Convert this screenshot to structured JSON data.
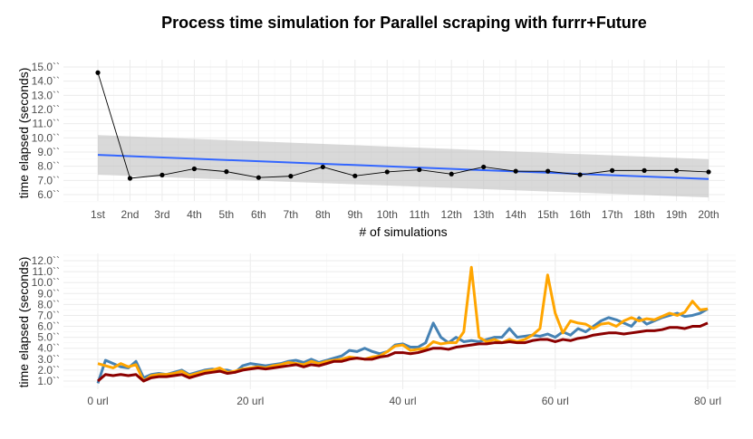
{
  "title": "Process time simulation for Parallel scraping with furrr+Future",
  "chart_data": [
    {
      "type": "line",
      "xlabel": "# of simulations",
      "ylabel": "time elapsed (seconds)",
      "categories": [
        "1st",
        "2nd",
        "3rd",
        "4th",
        "5th",
        "6th",
        "7th",
        "8th",
        "9th",
        "10th",
        "11th",
        "12th",
        "13th",
        "14th",
        "15th",
        "16th",
        "17th",
        "18th",
        "19th",
        "20th"
      ],
      "values": [
        14.6,
        7.15,
        7.38,
        7.82,
        7.62,
        7.2,
        7.3,
        7.95,
        7.32,
        7.6,
        7.75,
        7.45,
        7.95,
        7.65,
        7.65,
        7.4,
        7.7,
        7.7,
        7.7,
        7.6
      ],
      "yticks": [
        "6.0``",
        "7.0``",
        "8.0``",
        "9.0``",
        "10.0``",
        "11.0``",
        "12.0``",
        "13.0``",
        "14.0``",
        "15.0``"
      ],
      "ylim": [
        5.5,
        15.2
      ],
      "trend": {
        "start": 8.8,
        "end": 7.1,
        "band_start": [
          7.4,
          10.2
        ],
        "band_end": [
          5.8,
          8.5
        ]
      },
      "colors": {
        "points": "#000000",
        "trend": "#3366ff",
        "band": "#bfbfbf"
      },
      "grid": true
    },
    {
      "type": "line",
      "ylabel": "time elapsed (seconds)",
      "xticks": [
        "0 url",
        "20 url",
        "40 url",
        "60 url",
        "80 url"
      ],
      "xlim": [
        0,
        80
      ],
      "yticks": [
        "1.0``",
        "2.0``",
        "3.0``",
        "4.0``",
        "5.0``",
        "6.0``",
        "7.0``",
        "8.0``",
        "9.0``",
        "10.0``",
        "11.0``",
        "12.0``"
      ],
      "ylim": [
        0.3,
        12.6
      ],
      "grid": true,
      "series": [
        {
          "color": "#4682b4",
          "values": [
            0.8,
            2.9,
            2.6,
            2.3,
            2.2,
            2.8,
            1.3,
            1.6,
            1.7,
            1.6,
            1.8,
            2.0,
            1.6,
            1.8,
            2.0,
            2.1,
            2.0,
            2.0,
            1.8,
            2.4,
            2.6,
            2.5,
            2.4,
            2.5,
            2.6,
            2.8,
            2.9,
            2.7,
            3.0,
            2.7,
            2.9,
            3.1,
            3.3,
            3.8,
            3.7,
            4.0,
            3.7,
            3.5,
            3.7,
            4.3,
            4.4,
            4.1,
            4.1,
            4.5,
            6.3,
            5.0,
            4.5,
            5.0,
            4.6,
            4.7,
            4.6,
            4.8,
            5.0,
            5.0,
            5.8,
            5.0,
            5.1,
            5.2,
            5.1,
            5.3,
            5.0,
            5.5,
            5.2,
            5.8,
            5.5,
            6.0,
            6.5,
            6.8,
            6.6,
            6.3,
            6.0,
            6.8,
            6.2,
            6.5,
            6.8,
            7.0,
            7.2,
            6.9,
            7.0,
            7.2,
            7.6
          ]
        },
        {
          "color": "#ffa500",
          "values": [
            2.6,
            2.4,
            2.2,
            2.6,
            2.3,
            2.5,
            1.0,
            1.5,
            1.6,
            1.6,
            1.7,
            1.9,
            1.5,
            1.7,
            1.9,
            2.0,
            2.2,
            1.8,
            1.9,
            2.1,
            2.2,
            2.3,
            2.2,
            2.4,
            2.5,
            2.7,
            2.6,
            2.5,
            2.8,
            2.6,
            2.8,
            2.9,
            3.0,
            3.2,
            3.1,
            3.0,
            3.2,
            3.3,
            3.7,
            4.2,
            4.3,
            3.8,
            3.9,
            4.0,
            4.6,
            4.4,
            4.5,
            4.5,
            5.5,
            11.4,
            5.0,
            4.6,
            4.8,
            4.5,
            4.8,
            4.6,
            4.8,
            5.2,
            5.8,
            10.7,
            7.2,
            5.4,
            6.5,
            6.3,
            6.2,
            5.8,
            6.2,
            6.3,
            6.0,
            6.5,
            6.8,
            6.5,
            6.7,
            6.6,
            6.9,
            7.2,
            7.0,
            7.3,
            8.3,
            7.5,
            7.6
          ]
        },
        {
          "color": "#8b0000",
          "values": [
            1.0,
            1.6,
            1.5,
            1.6,
            1.5,
            1.6,
            1.0,
            1.3,
            1.4,
            1.4,
            1.5,
            1.6,
            1.3,
            1.5,
            1.7,
            1.8,
            1.9,
            1.7,
            1.8,
            2.0,
            2.1,
            2.2,
            2.1,
            2.2,
            2.3,
            2.4,
            2.5,
            2.3,
            2.5,
            2.4,
            2.6,
            2.8,
            2.8,
            3.0,
            3.1,
            3.0,
            3.0,
            3.2,
            3.3,
            3.6,
            3.6,
            3.5,
            3.6,
            3.8,
            4.0,
            4.0,
            3.9,
            4.1,
            4.2,
            4.3,
            4.4,
            4.4,
            4.5,
            4.5,
            4.6,
            4.5,
            4.5,
            4.7,
            4.8,
            4.8,
            4.6,
            4.8,
            4.7,
            4.9,
            5.0,
            5.2,
            5.3,
            5.4,
            5.4,
            5.3,
            5.4,
            5.5,
            5.6,
            5.6,
            5.7,
            5.9,
            5.9,
            5.8,
            6.0,
            6.0,
            6.3
          ]
        }
      ]
    }
  ]
}
